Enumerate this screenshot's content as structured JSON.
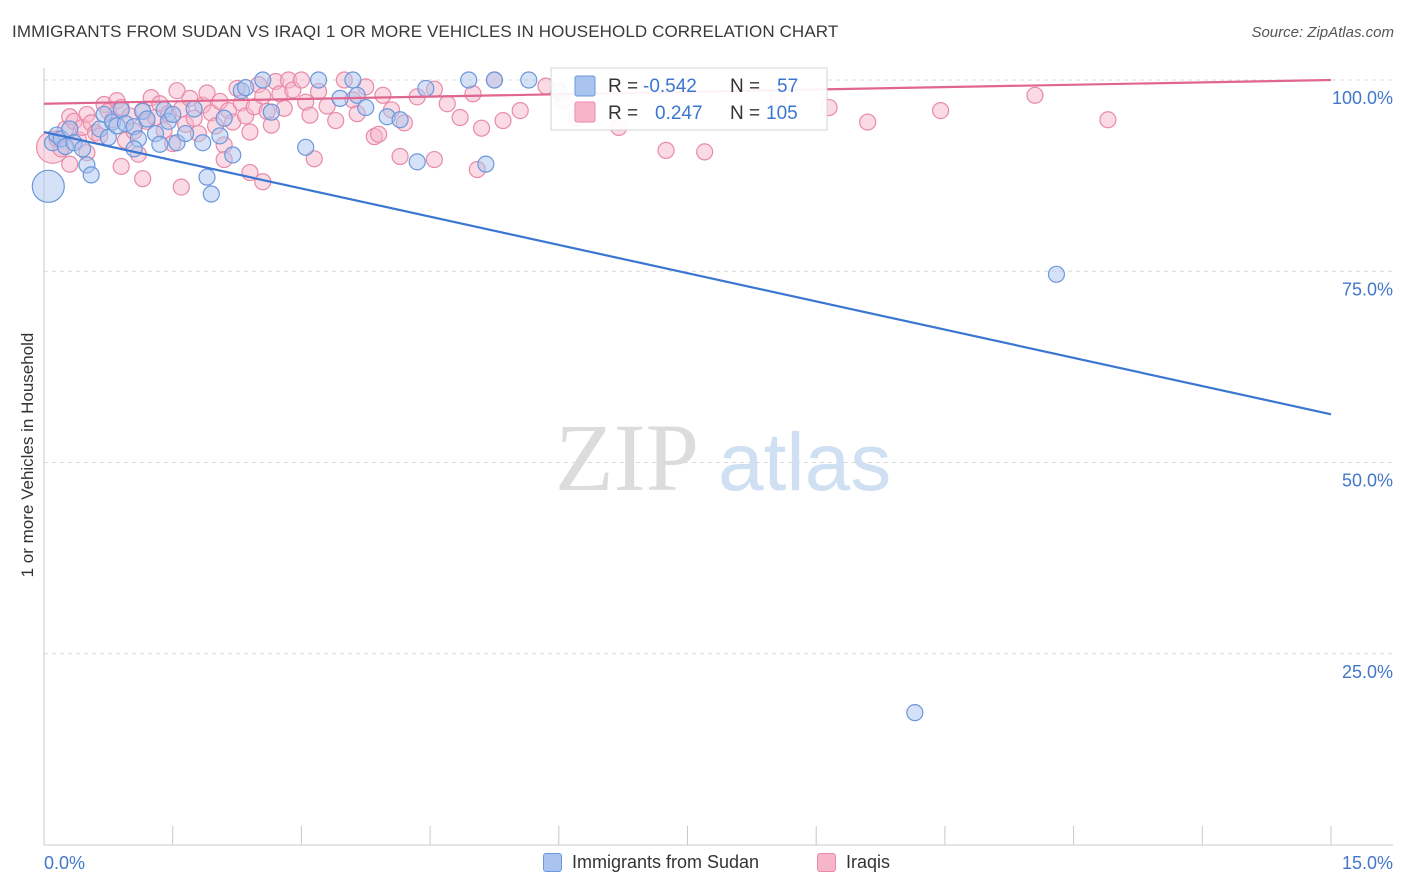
{
  "header": {
    "title": "IMMIGRANTS FROM SUDAN VS IRAQI 1 OR MORE VEHICLES IN HOUSEHOLD CORRELATION CHART",
    "source": "Source: ZipAtlas.com"
  },
  "watermark": {
    "zip": "ZIP",
    "atlas": "atlas"
  },
  "colors": {
    "sudan_fill": "#a9c4ee",
    "sudan_stroke": "#6b97dc",
    "sudan_line": "#3b76d1",
    "iraqi_fill": "#f6b5c9",
    "iraqi_stroke": "#e98aa8",
    "iraqi_line": "#e0668f",
    "tick_label": "#4277c9"
  },
  "legend": {
    "rows": [
      {
        "r_label": "R =",
        "r_value": "-0.542",
        "n_label": "N =",
        "n_value": "57"
      },
      {
        "r_label": "R =",
        "r_value": "0.247",
        "n_label": "N =",
        "n_value": "105"
      }
    ]
  },
  "bottom_legend": {
    "sudan": "Immigrants from Sudan",
    "iraqi": "Iraqis"
  },
  "chart_data": {
    "type": "scatter",
    "title": "IMMIGRANTS FROM SUDAN VS IRAQI 1 OR MORE VEHICLES IN HOUSEHOLD CORRELATION CHART",
    "xlabel": "",
    "ylabel": "1 or more Vehicles in Household",
    "xlim": [
      0,
      15
    ],
    "ylim": [
      0,
      100
    ],
    "x_tick_labels": [
      "0.0%",
      "15.0%"
    ],
    "y_tick_labels": [
      "100.0%",
      "75.0%",
      "50.0%",
      "25.0%"
    ],
    "y_ticks": [
      100,
      75,
      50,
      25
    ],
    "legend_position": "top-center",
    "series": [
      {
        "name": "Immigrants from Sudan",
        "r": -0.542,
        "n": 57,
        "trend": {
          "x": [
            0,
            15
          ],
          "y": [
            93.2,
            56.3
          ]
        },
        "points": [
          {
            "x": 0.05,
            "y": 86.1,
            "big": true
          },
          {
            "x": 0.1,
            "y": 91.8
          },
          {
            "x": 0.15,
            "y": 92.8
          },
          {
            "x": 0.2,
            "y": 92.3
          },
          {
            "x": 0.25,
            "y": 91.3
          },
          {
            "x": 0.3,
            "y": 93.6
          },
          {
            "x": 0.35,
            "y": 91.8
          },
          {
            "x": 0.45,
            "y": 91.0
          },
          {
            "x": 0.5,
            "y": 88.9
          },
          {
            "x": 0.55,
            "y": 87.6
          },
          {
            "x": 0.65,
            "y": 93.6
          },
          {
            "x": 0.7,
            "y": 95.5
          },
          {
            "x": 0.75,
            "y": 92.5
          },
          {
            "x": 0.8,
            "y": 94.5
          },
          {
            "x": 0.85,
            "y": 94.0
          },
          {
            "x": 0.9,
            "y": 96.1
          },
          {
            "x": 0.95,
            "y": 94.3
          },
          {
            "x": 1.05,
            "y": 93.9
          },
          {
            "x": 1.1,
            "y": 92.3
          },
          {
            "x": 1.15,
            "y": 95.9
          },
          {
            "x": 1.2,
            "y": 94.9
          },
          {
            "x": 1.3,
            "y": 93.0
          },
          {
            "x": 1.35,
            "y": 91.6
          },
          {
            "x": 1.4,
            "y": 96.1
          },
          {
            "x": 1.45,
            "y": 94.6
          },
          {
            "x": 1.5,
            "y": 95.5
          },
          {
            "x": 1.55,
            "y": 91.8
          },
          {
            "x": 1.65,
            "y": 93.0
          },
          {
            "x": 1.75,
            "y": 96.2
          },
          {
            "x": 1.85,
            "y": 91.8
          },
          {
            "x": 1.9,
            "y": 87.3
          },
          {
            "x": 1.95,
            "y": 85.1
          },
          {
            "x": 2.05,
            "y": 92.7
          },
          {
            "x": 2.1,
            "y": 95.0
          },
          {
            "x": 2.2,
            "y": 90.2
          },
          {
            "x": 2.3,
            "y": 98.6
          },
          {
            "x": 2.35,
            "y": 99.0
          },
          {
            "x": 2.55,
            "y": 100.0
          },
          {
            "x": 2.65,
            "y": 95.8
          },
          {
            "x": 3.05,
            "y": 91.2
          },
          {
            "x": 3.2,
            "y": 100.0
          },
          {
            "x": 3.45,
            "y": 97.6
          },
          {
            "x": 3.6,
            "y": 100.0
          },
          {
            "x": 3.65,
            "y": 98.0
          },
          {
            "x": 3.75,
            "y": 96.4
          },
          {
            "x": 4.0,
            "y": 95.2
          },
          {
            "x": 4.15,
            "y": 94.8
          },
          {
            "x": 4.35,
            "y": 89.3
          },
          {
            "x": 4.45,
            "y": 98.9
          },
          {
            "x": 4.95,
            "y": 100.0
          },
          {
            "x": 5.15,
            "y": 89.0
          },
          {
            "x": 5.25,
            "y": 100.0
          },
          {
            "x": 5.65,
            "y": 100.0
          },
          {
            "x": 6.0,
            "y": 98.5
          },
          {
            "x": 11.8,
            "y": 74.6
          },
          {
            "x": 10.15,
            "y": 17.3
          },
          {
            "x": 1.05,
            "y": 91.0
          }
        ]
      },
      {
        "name": "Iraqis",
        "r": 0.247,
        "n": 105,
        "trend": {
          "x": [
            0,
            15
          ],
          "y": [
            96.9,
            100.0
          ]
        },
        "points": [
          {
            "x": 0.1,
            "y": 91.2,
            "big": true
          },
          {
            "x": 0.15,
            "y": 92.3
          },
          {
            "x": 0.2,
            "y": 91.0
          },
          {
            "x": 0.25,
            "y": 93.6
          },
          {
            "x": 0.3,
            "y": 95.2
          },
          {
            "x": 0.35,
            "y": 94.6
          },
          {
            "x": 0.4,
            "y": 92.2
          },
          {
            "x": 0.45,
            "y": 93.8
          },
          {
            "x": 0.5,
            "y": 95.5
          },
          {
            "x": 0.55,
            "y": 94.4
          },
          {
            "x": 0.6,
            "y": 93.1
          },
          {
            "x": 0.65,
            "y": 92.7
          },
          {
            "x": 0.7,
            "y": 96.8
          },
          {
            "x": 0.75,
            "y": 95.9
          },
          {
            "x": 0.8,
            "y": 94.8
          },
          {
            "x": 0.85,
            "y": 97.3
          },
          {
            "x": 0.9,
            "y": 96.4
          },
          {
            "x": 0.95,
            "y": 92.1
          },
          {
            "x": 1.0,
            "y": 95.3
          },
          {
            "x": 1.05,
            "y": 93.3
          },
          {
            "x": 1.1,
            "y": 90.3
          },
          {
            "x": 1.15,
            "y": 96.0
          },
          {
            "x": 1.2,
            "y": 94.6
          },
          {
            "x": 1.25,
            "y": 97.7
          },
          {
            "x": 1.3,
            "y": 95.1
          },
          {
            "x": 1.35,
            "y": 96.9
          },
          {
            "x": 1.4,
            "y": 93.4
          },
          {
            "x": 1.45,
            "y": 95.6
          },
          {
            "x": 1.5,
            "y": 91.7
          },
          {
            "x": 1.55,
            "y": 98.6
          },
          {
            "x": 1.6,
            "y": 96.2
          },
          {
            "x": 1.65,
            "y": 94.2
          },
          {
            "x": 1.7,
            "y": 97.6
          },
          {
            "x": 1.75,
            "y": 95.0
          },
          {
            "x": 1.8,
            "y": 93.0
          },
          {
            "x": 1.85,
            "y": 96.7
          },
          {
            "x": 1.9,
            "y": 98.3
          },
          {
            "x": 1.95,
            "y": 95.7
          },
          {
            "x": 2.0,
            "y": 94.0
          },
          {
            "x": 2.05,
            "y": 97.2
          },
          {
            "x": 2.1,
            "y": 91.5
          },
          {
            "x": 2.15,
            "y": 96.0
          },
          {
            "x": 2.2,
            "y": 94.5
          },
          {
            "x": 2.25,
            "y": 98.9
          },
          {
            "x": 2.3,
            "y": 97.0
          },
          {
            "x": 2.35,
            "y": 95.3
          },
          {
            "x": 2.4,
            "y": 93.2
          },
          {
            "x": 2.45,
            "y": 96.5
          },
          {
            "x": 2.5,
            "y": 99.4
          },
          {
            "x": 2.55,
            "y": 97.9
          },
          {
            "x": 2.6,
            "y": 95.9
          },
          {
            "x": 2.65,
            "y": 94.1
          },
          {
            "x": 2.7,
            "y": 99.8
          },
          {
            "x": 2.75,
            "y": 98.2
          },
          {
            "x": 2.8,
            "y": 96.3
          },
          {
            "x": 2.85,
            "y": 100.0
          },
          {
            "x": 2.9,
            "y": 98.7
          },
          {
            "x": 3.0,
            "y": 100.0
          },
          {
            "x": 3.05,
            "y": 97.1
          },
          {
            "x": 3.1,
            "y": 95.4
          },
          {
            "x": 3.2,
            "y": 98.5
          },
          {
            "x": 3.3,
            "y": 96.6
          },
          {
            "x": 3.4,
            "y": 94.7
          },
          {
            "x": 3.5,
            "y": 100.0
          },
          {
            "x": 3.6,
            "y": 97.4
          },
          {
            "x": 3.65,
            "y": 95.6
          },
          {
            "x": 3.75,
            "y": 99.1
          },
          {
            "x": 3.85,
            "y": 92.6
          },
          {
            "x": 3.95,
            "y": 98.0
          },
          {
            "x": 4.05,
            "y": 96.1
          },
          {
            "x": 4.2,
            "y": 94.4
          },
          {
            "x": 4.35,
            "y": 97.8
          },
          {
            "x": 4.55,
            "y": 98.8
          },
          {
            "x": 4.7,
            "y": 96.9
          },
          {
            "x": 4.85,
            "y": 95.1
          },
          {
            "x": 5.0,
            "y": 98.2
          },
          {
            "x": 5.1,
            "y": 93.7
          },
          {
            "x": 5.25,
            "y": 100.0
          },
          {
            "x": 5.35,
            "y": 94.7
          },
          {
            "x": 5.55,
            "y": 96.0
          },
          {
            "x": 5.85,
            "y": 99.2
          },
          {
            "x": 6.2,
            "y": 95.0
          },
          {
            "x": 6.7,
            "y": 93.8
          },
          {
            "x": 7.25,
            "y": 90.8
          },
          {
            "x": 7.7,
            "y": 90.6
          },
          {
            "x": 8.55,
            "y": 97.6
          },
          {
            "x": 9.15,
            "y": 96.4
          },
          {
            "x": 9.6,
            "y": 94.5
          },
          {
            "x": 10.45,
            "y": 96.0
          },
          {
            "x": 11.55,
            "y": 98.0
          },
          {
            "x": 12.4,
            "y": 94.8
          },
          {
            "x": 0.3,
            "y": 89.0
          },
          {
            "x": 0.5,
            "y": 90.5
          },
          {
            "x": 0.9,
            "y": 88.7
          },
          {
            "x": 1.15,
            "y": 87.1
          },
          {
            "x": 1.6,
            "y": 86.0
          },
          {
            "x": 2.1,
            "y": 89.6
          },
          {
            "x": 2.4,
            "y": 87.9
          },
          {
            "x": 2.55,
            "y": 86.7
          },
          {
            "x": 3.15,
            "y": 89.7
          },
          {
            "x": 3.9,
            "y": 92.9
          },
          {
            "x": 4.15,
            "y": 90.0
          },
          {
            "x": 4.55,
            "y": 89.6
          },
          {
            "x": 5.05,
            "y": 88.3
          },
          {
            "x": 6.05,
            "y": 97.3
          }
        ]
      }
    ]
  }
}
